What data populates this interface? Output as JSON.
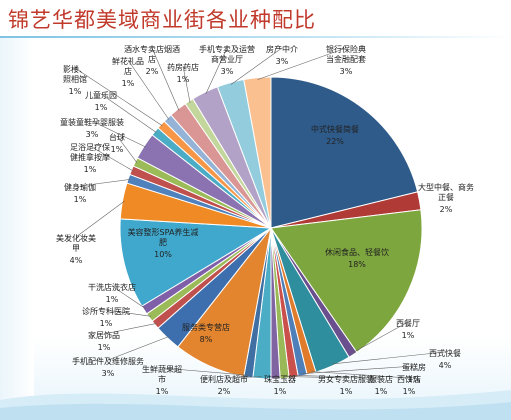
{
  "title": "锦艺华都美域商业街各业种配比",
  "colors": {
    "title": "#c0392b",
    "leader": "#666666",
    "slice_stroke": "#ffffff"
  },
  "chart_data": {
    "type": "pie",
    "title": "锦艺华都美域商业街各业种配比",
    "legend": "none",
    "slices": [
      {
        "label": "中式快餐简餐",
        "value": 22,
        "value_label": "22%",
        "color": "#2f5b8a"
      },
      {
        "label": "大型中餐、商务正餐",
        "value": 2,
        "value_label": "2%",
        "color": "#b03a36"
      },
      {
        "label": "休闲食品、轻餐饮",
        "value": 18,
        "value_label": "18%",
        "color": "#7ea63f"
      },
      {
        "label": "西餐厅",
        "value": 1,
        "value_label": "1%",
        "color": "#6a4f8f"
      },
      {
        "label": "西式快餐",
        "value": 4,
        "value_label": "4%",
        "color": "#2f8e9e"
      },
      {
        "label": "西饼店",
        "value": 1,
        "value_label": "1%",
        "color": "#e07b2c"
      },
      {
        "label": "蛋糕房",
        "value": 1,
        "value_label": "1%",
        "color": "#4f7fb8"
      },
      {
        "label": "服装店",
        "value": 1,
        "value_label": "1%",
        "color": "#c9504b"
      },
      {
        "label": "男女专卖店服装",
        "value": 1,
        "value_label": "1%",
        "color": "#99b958"
      },
      {
        "label": "珠宝玉器",
        "value": 1,
        "value_label": "1%",
        "color": "#8064a2"
      },
      {
        "label": "便利店及超市",
        "value": 2,
        "value_label": "2%",
        "color": "#4bacc6"
      },
      {
        "label": "生鲜蔬果超市",
        "value": 1,
        "value_label": "1%",
        "color": "#3f6fa3"
      },
      {
        "label": "服务类专营店",
        "value": 8,
        "value_label": "8%",
        "color": "#e3852f"
      },
      {
        "label": "手机配件及维修服务",
        "value": 3,
        "value_label": "3%",
        "color": "#3d6fae"
      },
      {
        "label": "家居饰品",
        "value": 1,
        "value_label": "1%",
        "color": "#c0504d"
      },
      {
        "label": "诊所专科医院",
        "value": 1,
        "value_label": "1%",
        "color": "#9bbb59"
      },
      {
        "label": "干洗店洗衣店",
        "value": 1,
        "value_label": "1%",
        "color": "#7f5fa8"
      },
      {
        "label": "美容整形SPA养生减肥",
        "value": 10,
        "value_label": "10%",
        "color": "#3fa8cc"
      },
      {
        "label": "美发化妆美甲",
        "value": 4,
        "value_label": "4%",
        "color": "#f08a24"
      },
      {
        "label": "健身瑜伽",
        "value": 1,
        "value_label": "1%",
        "color": "#4f81bd"
      },
      {
        "label": "足浴足疗保健推拿按摩",
        "value": 1,
        "value_label": "1%",
        "color": "#c0504d"
      },
      {
        "label": "台球",
        "value": 1,
        "value_label": "1%",
        "color": "#9bbb59"
      },
      {
        "label": "童装童鞋孕婴服装",
        "value": 3,
        "value_label": "3%",
        "color": "#8a73b0"
      },
      {
        "label": "儿童乐园",
        "value": 1,
        "value_label": "1%",
        "color": "#4bacc6"
      },
      {
        "label": "影楼、照相馆",
        "value": 1,
        "value_label": "1%",
        "color": "#f79646"
      },
      {
        "label": "鲜花礼品店",
        "value": 1,
        "value_label": "1%",
        "color": "#95b3d7"
      },
      {
        "label": "酒水专卖店烟酒店",
        "value": 2,
        "value_label": "2%",
        "color": "#da9694"
      },
      {
        "label": "药房药店",
        "value": 1,
        "value_label": "1%",
        "color": "#c3d69b"
      },
      {
        "label": "手机专卖及运营商营业厅",
        "value": 3,
        "value_label": "3%",
        "color": "#b3a2c7"
      },
      {
        "label": "房产中介",
        "value": 3,
        "value_label": "3%",
        "color": "#93cddd"
      },
      {
        "label": "银行保险典当金融配套",
        "value": 3,
        "value_label": "3%",
        "color": "#fac090"
      }
    ]
  }
}
